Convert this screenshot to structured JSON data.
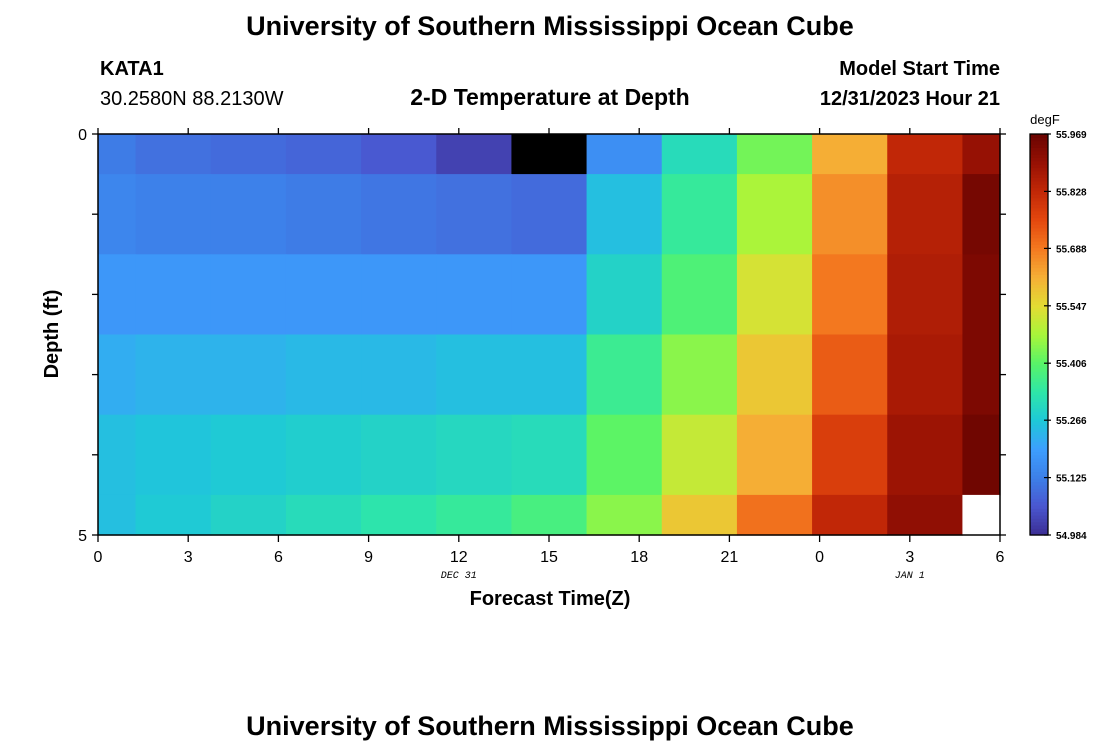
{
  "header": {
    "title": "University of Southern Mississippi Ocean Cube",
    "station": "KATA1",
    "coords": "30.2580N  88.2130W",
    "subtitle": "2-D Temperature at Depth",
    "model_start_label": "Model Start Time",
    "model_start_value": "12/31/2023 Hour 21"
  },
  "footer": {
    "title": "University of Southern Mississippi Ocean Cube"
  },
  "chart_data": {
    "type": "heatmap",
    "title": "2-D Temperature at Depth",
    "xlabel": "Forecast Time(Z)",
    "ylabel": "Depth (ft)",
    "x_tick_labels": [
      "0",
      "3",
      "6",
      "9",
      "12",
      "15",
      "18",
      "21",
      "0",
      "3",
      "6"
    ],
    "x_date_labels": [
      {
        "text": "DEC 31",
        "hour": 12
      },
      {
        "text": "JAN 1",
        "hour": 27
      }
    ],
    "x_range_hours": [
      0,
      30
    ],
    "y_range_ft": [
      0,
      5
    ],
    "y_tick_labels": [
      "0",
      "5"
    ],
    "colorbar": {
      "unit": "degF",
      "min": 54.984,
      "max": 55.969,
      "tick_labels": [
        "54.984",
        "55.125",
        "55.266",
        "55.406",
        "55.547",
        "55.688",
        "55.828",
        "55.969"
      ]
    },
    "hours": [
      0,
      2.5,
      5,
      7.5,
      10,
      12.5,
      15,
      17.5,
      20,
      22.5,
      25,
      27.5,
      30
    ],
    "depth_levels_ft": [
      0,
      0.5,
      1.5,
      2.5,
      3.5,
      4.5,
      5
    ],
    "values": [
      [
        55.12,
        55.1,
        55.09,
        55.08,
        55.06,
        55.02,
        54.95,
        55.16,
        55.31,
        55.43,
        55.62,
        55.83,
        55.9
      ],
      [
        55.14,
        55.13,
        55.13,
        55.12,
        55.11,
        55.1,
        55.09,
        55.25,
        55.35,
        55.48,
        55.66,
        55.85,
        55.95
      ],
      [
        55.18,
        55.18,
        55.18,
        55.18,
        55.18,
        55.18,
        55.18,
        55.29,
        55.39,
        55.53,
        55.69,
        55.86,
        55.94
      ],
      [
        55.22,
        55.23,
        55.23,
        55.24,
        55.24,
        55.25,
        55.25,
        55.36,
        55.45,
        55.58,
        55.73,
        55.87,
        55.94
      ],
      [
        55.25,
        55.26,
        55.27,
        55.28,
        55.29,
        55.3,
        55.31,
        55.41,
        55.51,
        55.62,
        55.78,
        55.89,
        55.96
      ],
      [
        55.25,
        55.27,
        55.29,
        55.31,
        55.33,
        55.35,
        55.38,
        55.45,
        55.58,
        55.7,
        55.83,
        55.91,
        null
      ]
    ]
  }
}
